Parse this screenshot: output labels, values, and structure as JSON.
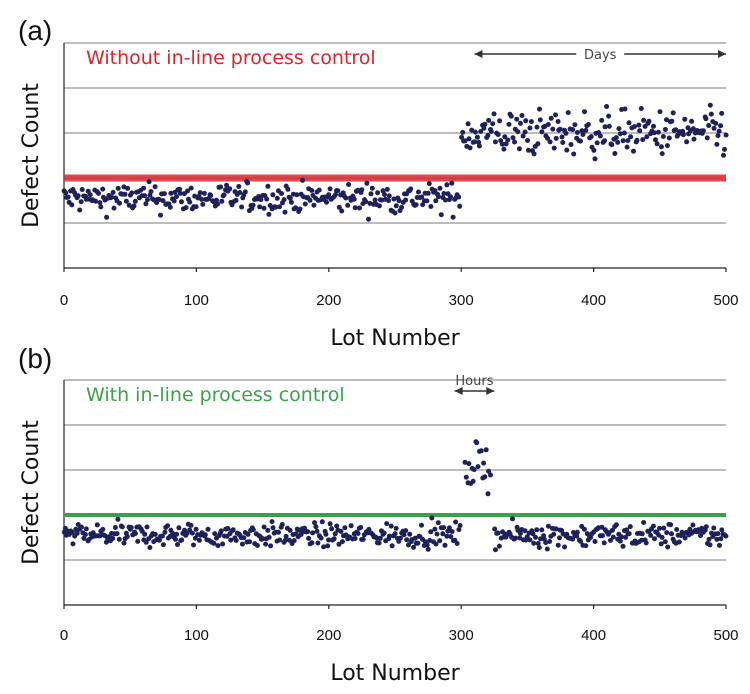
{
  "chart_data": [
    {
      "type": "scatter",
      "panel": "(a)",
      "legend": "Without in-line process control",
      "legend_color": "#d9262e",
      "threshold_color": "#d9262e",
      "threshold_y": 2.0,
      "annotation": {
        "text": "Days",
        "x_start": 310,
        "x_end": 500
      },
      "xlabel": "Lot Number",
      "ylabel": "Defect Count",
      "xlim": [
        0,
        500
      ],
      "ylim": [
        0,
        5
      ],
      "xticks": [
        "0",
        "100",
        "200",
        "300",
        "400",
        "500"
      ],
      "grid_y": [
        1,
        2,
        3,
        4,
        5
      ],
      "dot_color": "#1f2159",
      "segments": [
        {
          "x_from": 0,
          "x_to": 299,
          "mean": 1.55,
          "spread": 0.16
        },
        {
          "x_from": 300,
          "x_to": 500,
          "mean": 3.0,
          "spread": 0.25
        }
      ]
    },
    {
      "type": "scatter",
      "panel": "(b)",
      "legend": "With in-line process control",
      "legend_color": "#3aa14a",
      "threshold_color": "#3aa14a",
      "threshold_y": 2.0,
      "annotation": {
        "text": "Hours",
        "x_start": 295,
        "x_end": 325
      },
      "xlabel": "Lot Number",
      "ylabel": "Defect Count",
      "xlim": [
        0,
        500
      ],
      "ylim": [
        0,
        5
      ],
      "xticks": [
        "0",
        "100",
        "200",
        "300",
        "400",
        "500"
      ],
      "grid_y": [
        1,
        2,
        3,
        4,
        5
      ],
      "dot_color": "#1f2159",
      "segments": [
        {
          "x_from": 0,
          "x_to": 299,
          "mean": 1.55,
          "spread": 0.13
        },
        {
          "x_from": 303,
          "x_to": 322,
          "mean": 3.1,
          "spread": 0.25
        },
        {
          "x_from": 325,
          "x_to": 500,
          "mean": 1.55,
          "spread": 0.13
        }
      ]
    }
  ]
}
